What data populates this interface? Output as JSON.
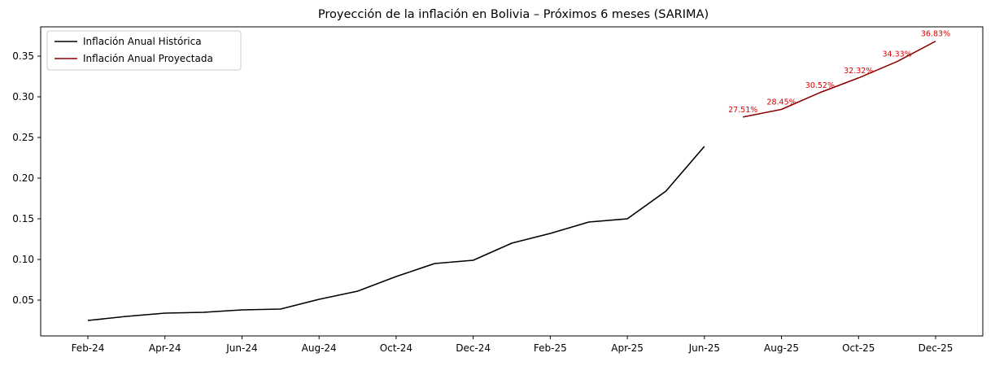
{
  "chart_data": {
    "type": "line",
    "title": "Proyección de la inflación en Bolivia – Próximos 6 meses (SARIMA)",
    "xlabel": "",
    "ylabel": "",
    "x_ticks": [
      "Feb-24",
      "Apr-24",
      "Jun-24",
      "Aug-24",
      "Oct-24",
      "Dec-24",
      "Feb-25",
      "Apr-25",
      "Jun-25",
      "Aug-25",
      "Oct-25",
      "Dec-25"
    ],
    "y_ticks": [
      "0.05",
      "0.10",
      "0.15",
      "0.20",
      "0.25",
      "0.30",
      "0.35"
    ],
    "ylim": [
      0.006,
      0.386
    ],
    "grid": false,
    "legend_position": "top-left",
    "series": [
      {
        "name": "Inflación Anual Histórica",
        "color": "#000000",
        "x": [
          "Feb-24",
          "Mar-24",
          "Apr-24",
          "May-24",
          "Jun-24",
          "Jul-24",
          "Aug-24",
          "Sep-24",
          "Oct-24",
          "Nov-24",
          "Dec-24",
          "Jan-25",
          "Feb-25",
          "Mar-25",
          "Apr-25",
          "May-25",
          "Jun-25"
        ],
        "values": [
          0.025,
          0.03,
          0.034,
          0.035,
          0.038,
          0.039,
          0.051,
          0.061,
          0.079,
          0.095,
          0.099,
          0.12,
          0.132,
          0.146,
          0.15,
          0.184,
          0.239
        ]
      },
      {
        "name": "Inflación Anual Proyectada",
        "color": "#8b0000",
        "x": [
          "Jul-25",
          "Aug-25",
          "Sep-25",
          "Oct-25",
          "Nov-25",
          "Dec-25"
        ],
        "values": [
          0.2751,
          0.2845,
          0.3052,
          0.3232,
          0.3433,
          0.3683
        ],
        "data_labels": [
          "27.51%",
          "28.45%",
          "30.52%",
          "32.32%",
          "34.33%",
          "36.83%"
        ],
        "label_color": "#e00000"
      }
    ]
  }
}
